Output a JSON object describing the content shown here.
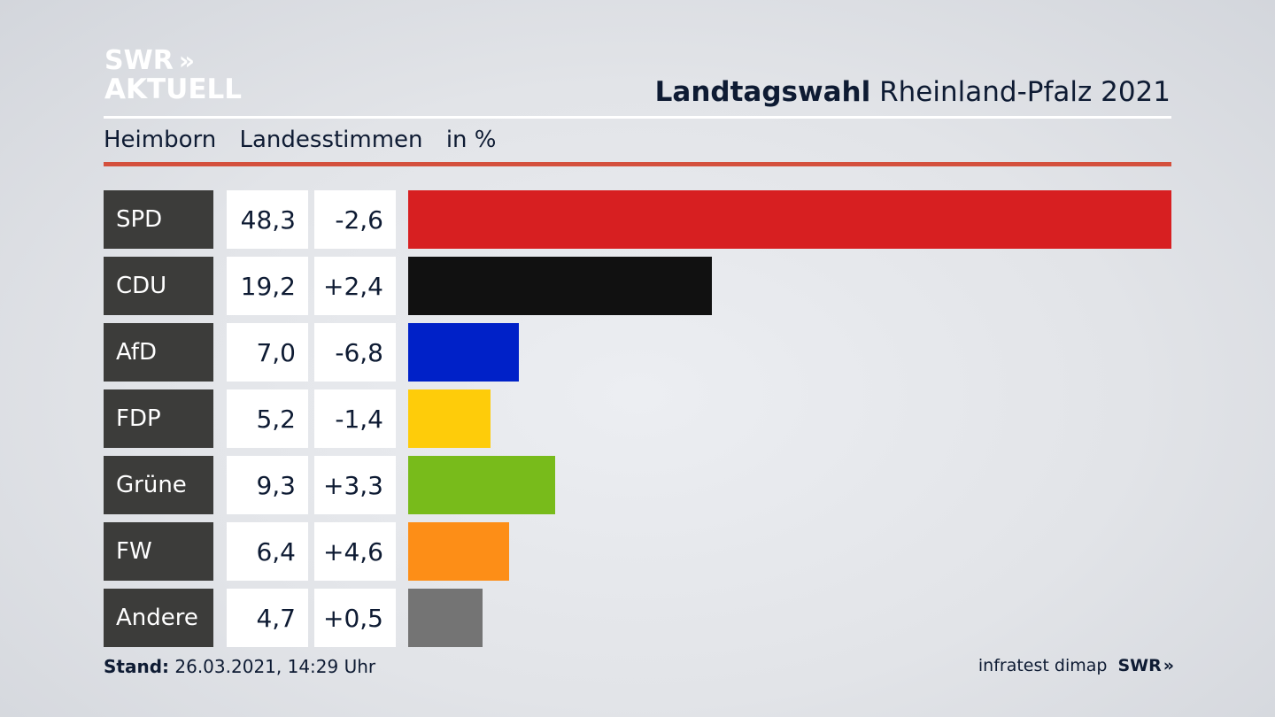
{
  "logo": {
    "line1": "SWR",
    "chevrons": "»",
    "line2": "AKTUELL"
  },
  "header": {
    "title_bold": "Landtagswahl",
    "title_rest": "Rheinland-Pfalz 2021"
  },
  "subheader": {
    "place": "Heimborn",
    "type": "Landesstimmen",
    "unit": "in %"
  },
  "footer": {
    "stand_label": "Stand:",
    "stand_value": "26.03.2021, 14:29 Uhr",
    "source": "infratest dimap",
    "brand": "SWR",
    "brand_chevrons": "»"
  },
  "chart_data": {
    "type": "bar",
    "orientation": "horizontal",
    "categories": [
      "SPD",
      "CDU",
      "AfD",
      "FDP",
      "Grüne",
      "FW",
      "Andere"
    ],
    "values": [
      48.3,
      19.2,
      7.0,
      5.2,
      9.3,
      6.4,
      4.7
    ],
    "value_labels": [
      "48,3",
      "19,2",
      "7,0",
      "5,2",
      "9,3",
      "6,4",
      "4,7"
    ],
    "change_labels": [
      "-2,6",
      "+2,4",
      "-6,8",
      "-1,4",
      "+3,3",
      "+4,6",
      "+0,5"
    ],
    "colors": [
      "#d71f21",
      "#111111",
      "#0021c8",
      "#fecc0a",
      "#78bb1b",
      "#fd8e17",
      "#747474"
    ],
    "xlim": [
      0,
      48.3
    ]
  }
}
